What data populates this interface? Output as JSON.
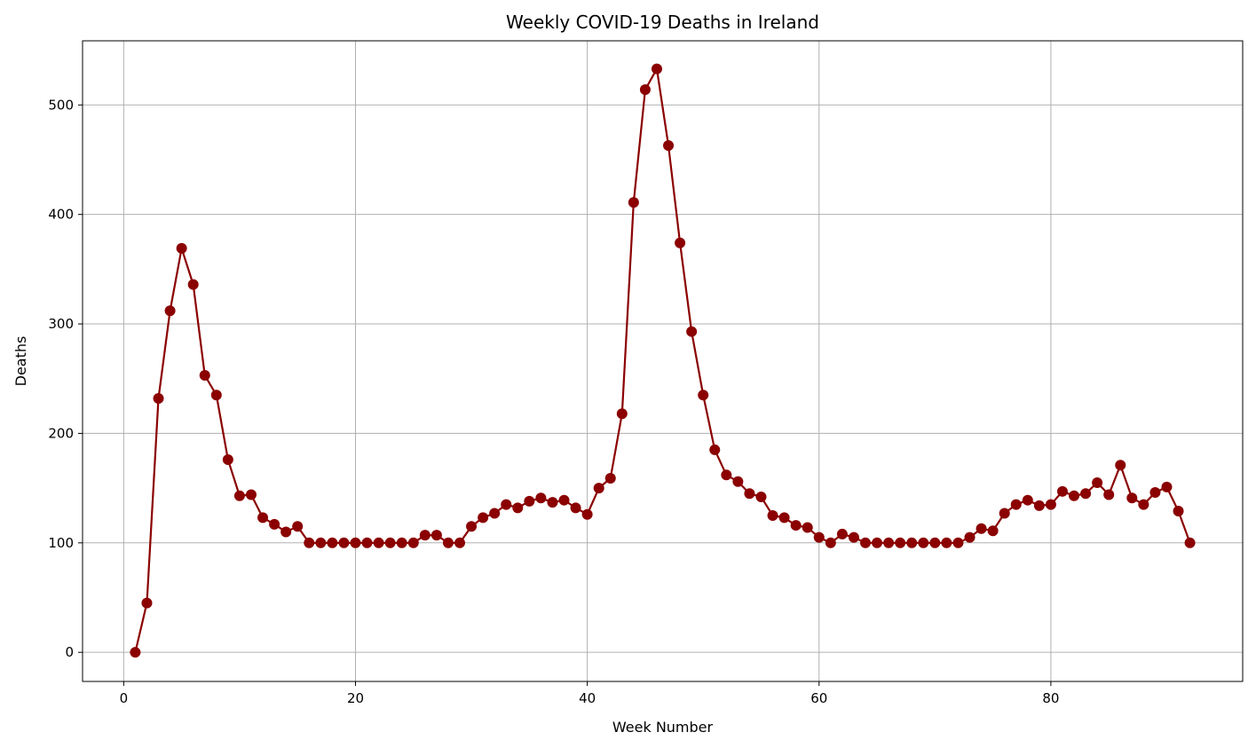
{
  "chart_data": {
    "type": "line",
    "title": "Weekly COVID-19 Deaths in Ireland",
    "xlabel": "Week Number",
    "ylabel": "Deaths",
    "xlim": [
      -3.55,
      96.55
    ],
    "ylim": [
      -26.6,
      558.6
    ],
    "xticks": [
      0,
      20,
      40,
      60,
      80
    ],
    "yticks": [
      0,
      100,
      200,
      300,
      400,
      500
    ],
    "grid": true,
    "marker": "circle",
    "color": "#8b0000",
    "series": [
      {
        "x": [
          1,
          2,
          3,
          4,
          5,
          6,
          7,
          8,
          9,
          10,
          11,
          12,
          13,
          14,
          15,
          16,
          17,
          18,
          19,
          20,
          21,
          22,
          23,
          24,
          25,
          26,
          27,
          28,
          29,
          30,
          31,
          32,
          33,
          34,
          35,
          36,
          37,
          38,
          39,
          40,
          41,
          42,
          43,
          44,
          45,
          46,
          47,
          48,
          49,
          50,
          51,
          52,
          53,
          54,
          55,
          56,
          57,
          58,
          59,
          60,
          61,
          62,
          63,
          64,
          65,
          66,
          67,
          68,
          69,
          70,
          71,
          72,
          73,
          74,
          75,
          76,
          77,
          78,
          79,
          80,
          81,
          82,
          83,
          84,
          85,
          86,
          87,
          88,
          89,
          90,
          91,
          92
        ],
        "y": [
          0,
          45,
          232,
          312,
          369,
          336,
          253,
          235,
          176,
          143,
          144,
          123,
          117,
          110,
          115,
          100,
          100,
          100,
          100,
          100,
          100,
          100,
          100,
          100,
          100,
          107,
          107,
          100,
          100,
          115,
          123,
          127,
          135,
          132,
          138,
          141,
          137,
          139,
          132,
          126,
          150,
          159,
          218,
          411,
          514,
          533,
          463,
          374,
          293,
          235,
          185,
          162,
          156,
          145,
          142,
          125,
          123,
          116,
          114,
          105,
          100,
          108,
          105,
          100,
          100,
          100,
          100,
          100,
          100,
          100,
          100,
          100,
          105,
          113,
          111,
          127,
          135,
          139,
          134,
          135,
          147,
          143,
          145,
          155,
          144,
          171,
          141,
          135,
          146,
          151,
          129,
          100
        ]
      }
    ]
  }
}
